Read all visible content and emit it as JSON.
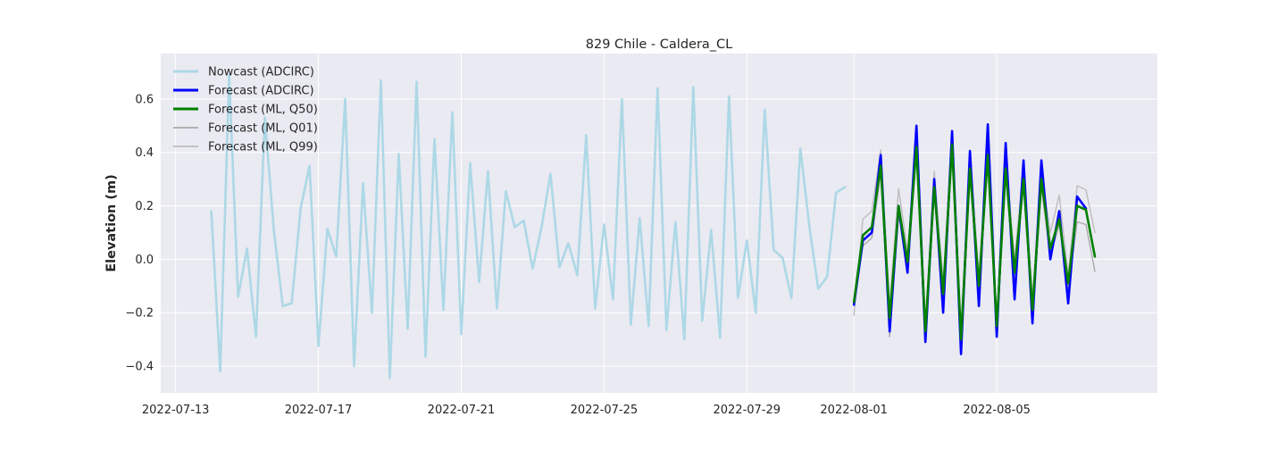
{
  "chart_data": {
    "type": "line",
    "title": "829 Chile - Caldera_CL",
    "xlabel": "",
    "ylabel": "Elevation (m)",
    "xlim": [
      "2022-07-12T14:00",
      "2022-08-09T12:00"
    ],
    "ylim": [
      -0.5,
      0.77
    ],
    "grid": true,
    "legend_position": "top-left",
    "x_ticks": [
      "2022-07-13",
      "2022-07-17",
      "2022-07-21",
      "2022-07-25",
      "2022-07-29",
      "2022-08-01",
      "2022-08-05"
    ],
    "y_ticks": [
      -0.4,
      -0.2,
      0.0,
      0.2,
      0.4,
      0.6
    ],
    "y_tick_labels": [
      "−0.4",
      "−0.2",
      "0.0",
      "0.2",
      "0.4",
      "0.6"
    ],
    "colors": {
      "plot_background": "#eaeaf2",
      "grid": "#ffffff",
      "nowcast": "#add8e6",
      "forecast_adcirc": "#0000ff",
      "forecast_ml_q50": "#008000",
      "forecast_ml_q01": "#a9a9a9",
      "forecast_ml_q99": "#bdbdbd"
    },
    "series": [
      {
        "name": "Nowcast (ADCIRC)",
        "color": "#add8e6",
        "width": 2.6,
        "points": [
          [
            "2022-07-14T00:00",
            0.18
          ],
          [
            "2022-07-14T06:00",
            -0.42
          ],
          [
            "2022-07-14T12:00",
            0.69
          ],
          [
            "2022-07-14T18:00",
            -0.14
          ],
          [
            "2022-07-15T00:00",
            0.04
          ],
          [
            "2022-07-15T06:00",
            -0.29
          ],
          [
            "2022-07-15T12:00",
            0.53
          ],
          [
            "2022-07-15T18:00",
            0.11
          ],
          [
            "2022-07-16T00:00",
            -0.175
          ],
          [
            "2022-07-16T06:00",
            -0.165
          ],
          [
            "2022-07-16T12:00",
            0.19
          ],
          [
            "2022-07-16T18:00",
            0.35
          ],
          [
            "2022-07-17T00:00",
            -0.325
          ],
          [
            "2022-07-17T06:00",
            0.115
          ],
          [
            "2022-07-17T12:00",
            0.01
          ],
          [
            "2022-07-17T18:00",
            0.6
          ],
          [
            "2022-07-18T00:00",
            -0.4
          ],
          [
            "2022-07-18T06:00",
            0.285
          ],
          [
            "2022-07-18T12:00",
            -0.2
          ],
          [
            "2022-07-18T18:00",
            0.67
          ],
          [
            "2022-07-19T00:00",
            -0.445
          ],
          [
            "2022-07-19T06:00",
            0.395
          ],
          [
            "2022-07-19T12:00",
            -0.26
          ],
          [
            "2022-07-19T18:00",
            0.665
          ],
          [
            "2022-07-20T00:00",
            -0.365
          ],
          [
            "2022-07-20T06:00",
            0.45
          ],
          [
            "2022-07-20T12:00",
            -0.19
          ],
          [
            "2022-07-20T18:00",
            0.55
          ],
          [
            "2022-07-21T00:00",
            -0.28
          ],
          [
            "2022-07-21T06:00",
            0.36
          ],
          [
            "2022-07-21T12:00",
            -0.085
          ],
          [
            "2022-07-21T18:00",
            0.33
          ],
          [
            "2022-07-22T00:00",
            -0.185
          ],
          [
            "2022-07-22T06:00",
            0.255
          ],
          [
            "2022-07-22T12:00",
            0.12
          ],
          [
            "2022-07-22T18:00",
            0.145
          ],
          [
            "2022-07-23T00:00",
            -0.035
          ],
          [
            "2022-07-23T06:00",
            0.12
          ],
          [
            "2022-07-23T12:00",
            0.32
          ],
          [
            "2022-07-23T18:00",
            -0.03
          ],
          [
            "2022-07-24T00:00",
            0.06
          ],
          [
            "2022-07-24T06:00",
            -0.06
          ],
          [
            "2022-07-24T12:00",
            0.465
          ],
          [
            "2022-07-24T18:00",
            -0.185
          ],
          [
            "2022-07-25T00:00",
            0.13
          ],
          [
            "2022-07-25T06:00",
            -0.15
          ],
          [
            "2022-07-25T12:00",
            0.6
          ],
          [
            "2022-07-25T18:00",
            -0.245
          ],
          [
            "2022-07-26T00:00",
            0.155
          ],
          [
            "2022-07-26T06:00",
            -0.25
          ],
          [
            "2022-07-26T12:00",
            0.64
          ],
          [
            "2022-07-26T18:00",
            -0.265
          ],
          [
            "2022-07-27T00:00",
            0.14
          ],
          [
            "2022-07-27T06:00",
            -0.3
          ],
          [
            "2022-07-27T12:00",
            0.645
          ],
          [
            "2022-07-27T18:00",
            -0.23
          ],
          [
            "2022-07-28T00:00",
            0.11
          ],
          [
            "2022-07-28T06:00",
            -0.295
          ],
          [
            "2022-07-28T12:00",
            0.61
          ],
          [
            "2022-07-28T18:00",
            -0.145
          ],
          [
            "2022-07-29T00:00",
            0.07
          ],
          [
            "2022-07-29T06:00",
            -0.2
          ],
          [
            "2022-07-29T12:00",
            0.56
          ],
          [
            "2022-07-29T18:00",
            0.035
          ],
          [
            "2022-07-30T00:00",
            0.005
          ],
          [
            "2022-07-30T06:00",
            -0.145
          ],
          [
            "2022-07-30T12:00",
            0.415
          ],
          [
            "2022-07-30T18:00",
            0.125
          ],
          [
            "2022-07-31T00:00",
            -0.11
          ],
          [
            "2022-07-31T06:00",
            -0.065
          ],
          [
            "2022-07-31T12:00",
            0.25
          ],
          [
            "2022-07-31T18:00",
            0.27
          ]
        ]
      },
      {
        "name": "Forecast (ADCIRC)",
        "color": "#0000ff",
        "width": 2.6,
        "points": [
          [
            "2022-08-01T00:00",
            -0.17
          ],
          [
            "2022-08-01T06:00",
            0.07
          ],
          [
            "2022-08-01T12:00",
            0.1
          ],
          [
            "2022-08-01T18:00",
            0.39
          ],
          [
            "2022-08-02T00:00",
            -0.27
          ],
          [
            "2022-08-02T06:00",
            0.2
          ],
          [
            "2022-08-02T12:00",
            -0.05
          ],
          [
            "2022-08-02T18:00",
            0.5
          ],
          [
            "2022-08-03T00:00",
            -0.31
          ],
          [
            "2022-08-03T06:00",
            0.3
          ],
          [
            "2022-08-03T12:00",
            -0.2
          ],
          [
            "2022-08-03T18:00",
            0.48
          ],
          [
            "2022-08-04T00:00",
            -0.355
          ],
          [
            "2022-08-04T06:00",
            0.405
          ],
          [
            "2022-08-04T12:00",
            -0.175
          ],
          [
            "2022-08-04T18:00",
            0.505
          ],
          [
            "2022-08-05T00:00",
            -0.29
          ],
          [
            "2022-08-05T06:00",
            0.435
          ],
          [
            "2022-08-05T12:00",
            -0.15
          ],
          [
            "2022-08-05T18:00",
            0.37
          ],
          [
            "2022-08-06T00:00",
            -0.24
          ],
          [
            "2022-08-06T06:00",
            0.37
          ],
          [
            "2022-08-06T12:00",
            0.0
          ],
          [
            "2022-08-06T18:00",
            0.18
          ],
          [
            "2022-08-07T00:00",
            -0.165
          ],
          [
            "2022-08-07T06:00",
            0.235
          ],
          [
            "2022-08-07T12:00",
            0.19
          ]
        ]
      },
      {
        "name": "Forecast (ML, Q50)",
        "color": "#008000",
        "width": 2.6,
        "points": [
          [
            "2022-08-01T00:00",
            -0.16
          ],
          [
            "2022-08-01T06:00",
            0.09
          ],
          [
            "2022-08-01T12:00",
            0.12
          ],
          [
            "2022-08-01T18:00",
            0.35
          ],
          [
            "2022-08-02T00:00",
            -0.22
          ],
          [
            "2022-08-02T06:00",
            0.2
          ],
          [
            "2022-08-02T12:00",
            -0.01
          ],
          [
            "2022-08-02T18:00",
            0.42
          ],
          [
            "2022-08-03T00:00",
            -0.27
          ],
          [
            "2022-08-03T06:00",
            0.27
          ],
          [
            "2022-08-03T12:00",
            -0.13
          ],
          [
            "2022-08-03T18:00",
            0.43
          ],
          [
            "2022-08-04T00:00",
            -0.3
          ],
          [
            "2022-08-04T06:00",
            0.34
          ],
          [
            "2022-08-04T12:00",
            -0.1
          ],
          [
            "2022-08-04T18:00",
            0.39
          ],
          [
            "2022-08-05T00:00",
            -0.25
          ],
          [
            "2022-08-05T06:00",
            0.34
          ],
          [
            "2022-08-05T12:00",
            -0.05
          ],
          [
            "2022-08-05T18:00",
            0.3
          ],
          [
            "2022-08-06T00:00",
            -0.19
          ],
          [
            "2022-08-06T06:00",
            0.3
          ],
          [
            "2022-08-06T12:00",
            0.04
          ],
          [
            "2022-08-06T18:00",
            0.15
          ],
          [
            "2022-08-07T00:00",
            -0.09
          ],
          [
            "2022-08-07T06:00",
            0.2
          ],
          [
            "2022-08-07T12:00",
            0.185
          ],
          [
            "2022-08-07T18:00",
            0.01
          ]
        ]
      },
      {
        "name": "Forecast (ML, Q01)",
        "color": "#a9a9a9",
        "width": 1.4,
        "points": [
          [
            "2022-08-01T00:00",
            -0.17
          ],
          [
            "2022-08-01T06:00",
            0.05
          ],
          [
            "2022-08-01T12:00",
            0.08
          ],
          [
            "2022-08-01T18:00",
            0.32
          ],
          [
            "2022-08-02T00:00",
            -0.29
          ],
          [
            "2022-08-02T06:00",
            0.17
          ],
          [
            "2022-08-02T12:00",
            -0.05
          ],
          [
            "2022-08-02T18:00",
            0.4
          ],
          [
            "2022-08-03T00:00",
            -0.3
          ],
          [
            "2022-08-03T06:00",
            0.26
          ],
          [
            "2022-08-03T12:00",
            -0.16
          ],
          [
            "2022-08-03T18:00",
            0.4
          ],
          [
            "2022-08-04T00:00",
            -0.32
          ],
          [
            "2022-08-04T06:00",
            0.32
          ],
          [
            "2022-08-04T12:00",
            -0.14
          ],
          [
            "2022-08-04T18:00",
            0.37
          ],
          [
            "2022-08-05T00:00",
            -0.27
          ],
          [
            "2022-08-05T06:00",
            0.32
          ],
          [
            "2022-08-05T12:00",
            -0.09
          ],
          [
            "2022-08-05T18:00",
            0.28
          ],
          [
            "2022-08-06T00:00",
            -0.21
          ],
          [
            "2022-08-06T06:00",
            0.27
          ],
          [
            "2022-08-06T12:00",
            0.01
          ],
          [
            "2022-08-06T18:00",
            0.13
          ],
          [
            "2022-08-07T00:00",
            -0.12
          ],
          [
            "2022-08-07T06:00",
            0.14
          ],
          [
            "2022-08-07T12:00",
            0.13
          ],
          [
            "2022-08-07T18:00",
            -0.045
          ]
        ]
      },
      {
        "name": "Forecast (ML, Q99)",
        "color": "#bdbdbd",
        "width": 1.4,
        "points": [
          [
            "2022-08-01T00:00",
            -0.21
          ],
          [
            "2022-08-01T06:00",
            0.15
          ],
          [
            "2022-08-01T12:00",
            0.18
          ],
          [
            "2022-08-01T18:00",
            0.41
          ],
          [
            "2022-08-02T00:00",
            -0.17
          ],
          [
            "2022-08-02T06:00",
            0.265
          ],
          [
            "2022-08-02T12:00",
            0.03
          ],
          [
            "2022-08-02T18:00",
            0.45
          ],
          [
            "2022-08-03T00:00",
            -0.24
          ],
          [
            "2022-08-03T06:00",
            0.33
          ],
          [
            "2022-08-03T12:00",
            -0.08
          ],
          [
            "2022-08-03T18:00",
            0.46
          ],
          [
            "2022-08-04T00:00",
            -0.27
          ],
          [
            "2022-08-04T06:00",
            0.41
          ],
          [
            "2022-08-04T12:00",
            -0.06
          ],
          [
            "2022-08-04T18:00",
            0.43
          ],
          [
            "2022-08-05T00:00",
            -0.22
          ],
          [
            "2022-08-05T06:00",
            0.39
          ],
          [
            "2022-08-05T12:00",
            0.0
          ],
          [
            "2022-08-05T18:00",
            0.35
          ],
          [
            "2022-08-06T00:00",
            -0.14
          ],
          [
            "2022-08-06T06:00",
            0.33
          ],
          [
            "2022-08-06T12:00",
            0.1
          ],
          [
            "2022-08-06T18:00",
            0.24
          ],
          [
            "2022-08-07T00:00",
            -0.06
          ],
          [
            "2022-08-07T06:00",
            0.275
          ],
          [
            "2022-08-07T12:00",
            0.26
          ],
          [
            "2022-08-07T18:00",
            0.1
          ]
        ]
      }
    ]
  }
}
